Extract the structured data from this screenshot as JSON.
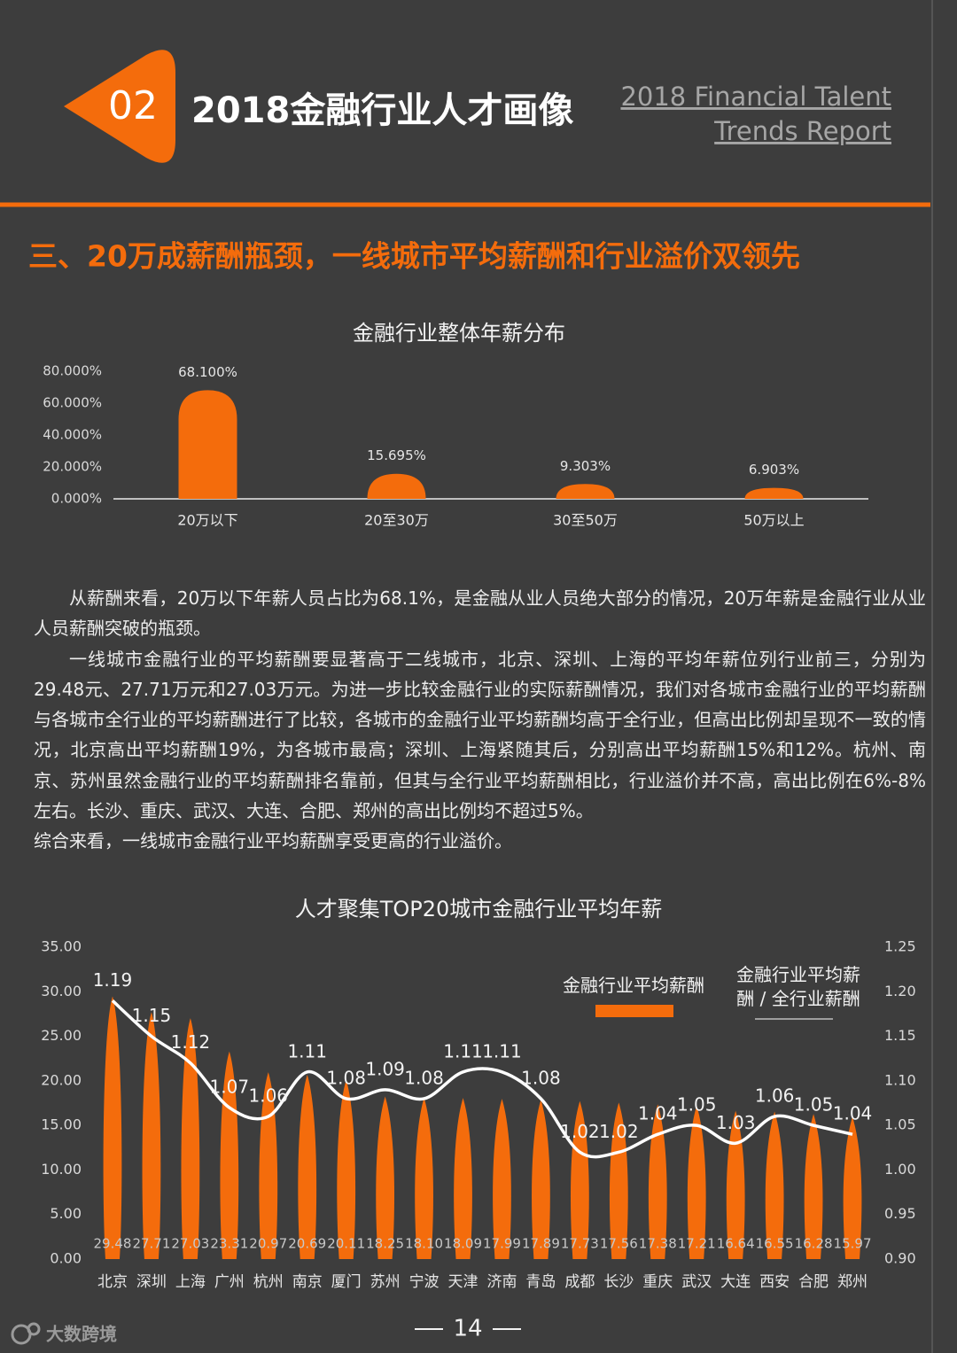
{
  "header": {
    "number": "02",
    "title": "2018金融行业人才画像",
    "english_title": [
      "2018 Financial Talent",
      "Trends Report"
    ]
  },
  "section_title": "三、20万成薪酬瓶颈，一线城市平均薪酬和行业溢价双领先",
  "chart_data": [
    {
      "type": "bar",
      "title": "金融行业整体年薪分布",
      "categories": [
        "20万以下",
        "20至30万",
        "30至50万",
        "50万以上"
      ],
      "values": [
        68.1,
        15.695,
        9.303,
        6.903
      ],
      "value_labels": [
        "68.100%",
        "15.695%",
        "9.303%",
        "6.903%"
      ],
      "color": "#f46c0c",
      "ylim": [
        0,
        80
      ],
      "yticks": [
        {
          "value": 0,
          "label": "0.000%"
        },
        {
          "value": 20,
          "label": "20.000%"
        },
        {
          "value": 40,
          "label": "40.000%"
        },
        {
          "value": 60,
          "label": "60.000%"
        },
        {
          "value": 80,
          "label": "80.000%"
        }
      ],
      "grid": false
    },
    {
      "type": "combo",
      "title": "人才聚集TOP20城市金融行业平均年薪",
      "categories": [
        "北京",
        "深圳",
        "上海",
        "广州",
        "杭州",
        "南京",
        "厦门",
        "苏州",
        "宁波",
        "天津",
        "济南",
        "青岛",
        "成都",
        "长沙",
        "重庆",
        "武汉",
        "大连",
        "西安",
        "合肥",
        "郑州"
      ],
      "series": [
        {
          "name": "金融行业平均薪酬",
          "type": "bar",
          "color": "#f46c0c",
          "values": [
            29.48,
            27.71,
            27.03,
            23.31,
            20.97,
            20.69,
            20.11,
            18.25,
            18.1,
            18.09,
            17.99,
            17.89,
            17.73,
            17.56,
            17.38,
            17.21,
            16.64,
            16.55,
            16.28,
            15.97
          ],
          "value_labels": [
            "29.48",
            "27.71",
            "27.03",
            "23.31",
            "20.97",
            "20.69",
            "20.11",
            "18.25",
            "18.10",
            "18.09",
            "17.99",
            "17.89",
            "17.73",
            "17.56",
            "17.38",
            "17.21",
            "16.64",
            "16.55",
            "16.28",
            "15.97"
          ]
        },
        {
          "name": "金融行业平均薪酬 / 全行业薪酬",
          "type": "line",
          "axis": "y2",
          "color": "#ffffff",
          "values": [
            1.19,
            1.15,
            1.12,
            1.07,
            1.06,
            1.11,
            1.08,
            1.09,
            1.08,
            1.11,
            1.11,
            1.08,
            1.02,
            1.02,
            1.04,
            1.05,
            1.03,
            1.06,
            1.05,
            1.04
          ]
        }
      ],
      "ylim": [
        0,
        35
      ],
      "yticks": [
        {
          "value": 0,
          "label": "0.00"
        },
        {
          "value": 5,
          "label": "5.00"
        },
        {
          "value": 10,
          "label": "10.00"
        },
        {
          "value": 15,
          "label": "15.00"
        },
        {
          "value": 20,
          "label": "20.00"
        },
        {
          "value": 25,
          "label": "25.00"
        },
        {
          "value": 30,
          "label": "30.00"
        },
        {
          "value": 35,
          "label": "35.00"
        }
      ],
      "y2lim": [
        0.9,
        1.25
      ],
      "y2ticks": [
        {
          "value": 0.9,
          "label": "0.90"
        },
        0.95,
        {
          "value": 1.0,
          "label": "1.00"
        },
        1.05,
        {
          "value": 1.1,
          "label": "1.10"
        },
        1.15,
        {
          "value": 1.2,
          "label": "1.20"
        },
        1.25
      ],
      "grid": false
    }
  ],
  "paragraphs": [
    "从薪酬来看，20万以下年薪人员占比为68.1%，是金融从业人员绝大部分的情况，20万年薪是金融行业从业人员薪酬突破的瓶颈。",
    "一线城市金融行业的平均薪酬要显著高于二线城市，北京、深圳、上海的平均年薪位列行业前三，分别为29.48元、27.71万元和27.03万元。为进一步比较金融行业的实际薪酬情况，我们对各城市金融行业的平均薪酬与各城市全行业的平均薪酬进行了比较，各城市的金融行业平均薪酬均高于全行业，但高出比例却呈现不一致的情况，北京高出平均薪酬19%，为各城市最高；深圳、上海紧随其后，分别高出平均薪酬15%和12%。杭州、南京、苏州虽然金融行业的平均薪酬排名靠前，但其与全行业平均薪酬相比，行业溢价并不高，高出比例在6%-8%左右。长沙、重庆、武汉、大连、合肥、郑州的高出比例均不超过5%。",
    "综合来看，一线城市金融行业平均薪酬享受更高的行业溢价。"
  ],
  "page_number": "14",
  "watermark": "大数跨境"
}
